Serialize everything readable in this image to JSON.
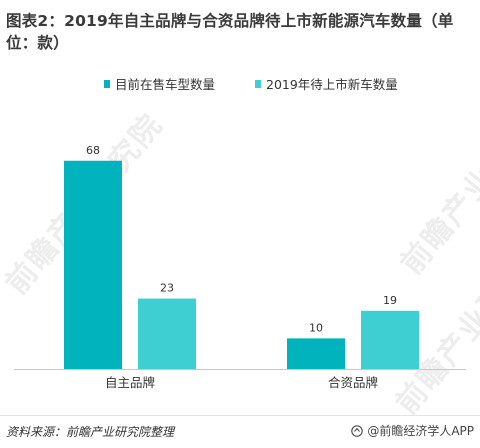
{
  "title": "图表2：2019年自主品牌与合资品牌待上市新能源汽车数量（单位：款）",
  "chart_data": {
    "type": "bar",
    "categories": [
      "自主品牌",
      "合资品牌"
    ],
    "series": [
      {
        "name": "目前在售车型数量",
        "values": [
          68,
          10
        ],
        "color": "#00b3bc"
      },
      {
        "name": "2019年待上市新车数量",
        "values": [
          23,
          19
        ],
        "color": "#3ecfd3"
      }
    ],
    "ylim": [
      0,
      80
    ],
    "grid": false,
    "legend_position": "top-center",
    "data_labels": true
  },
  "watermark": {
    "text": "前瞻产业研究院"
  },
  "footer": {
    "source": "资料来源：前瞻产业研究院整理",
    "brand": "@前瞻经济学人APP"
  }
}
